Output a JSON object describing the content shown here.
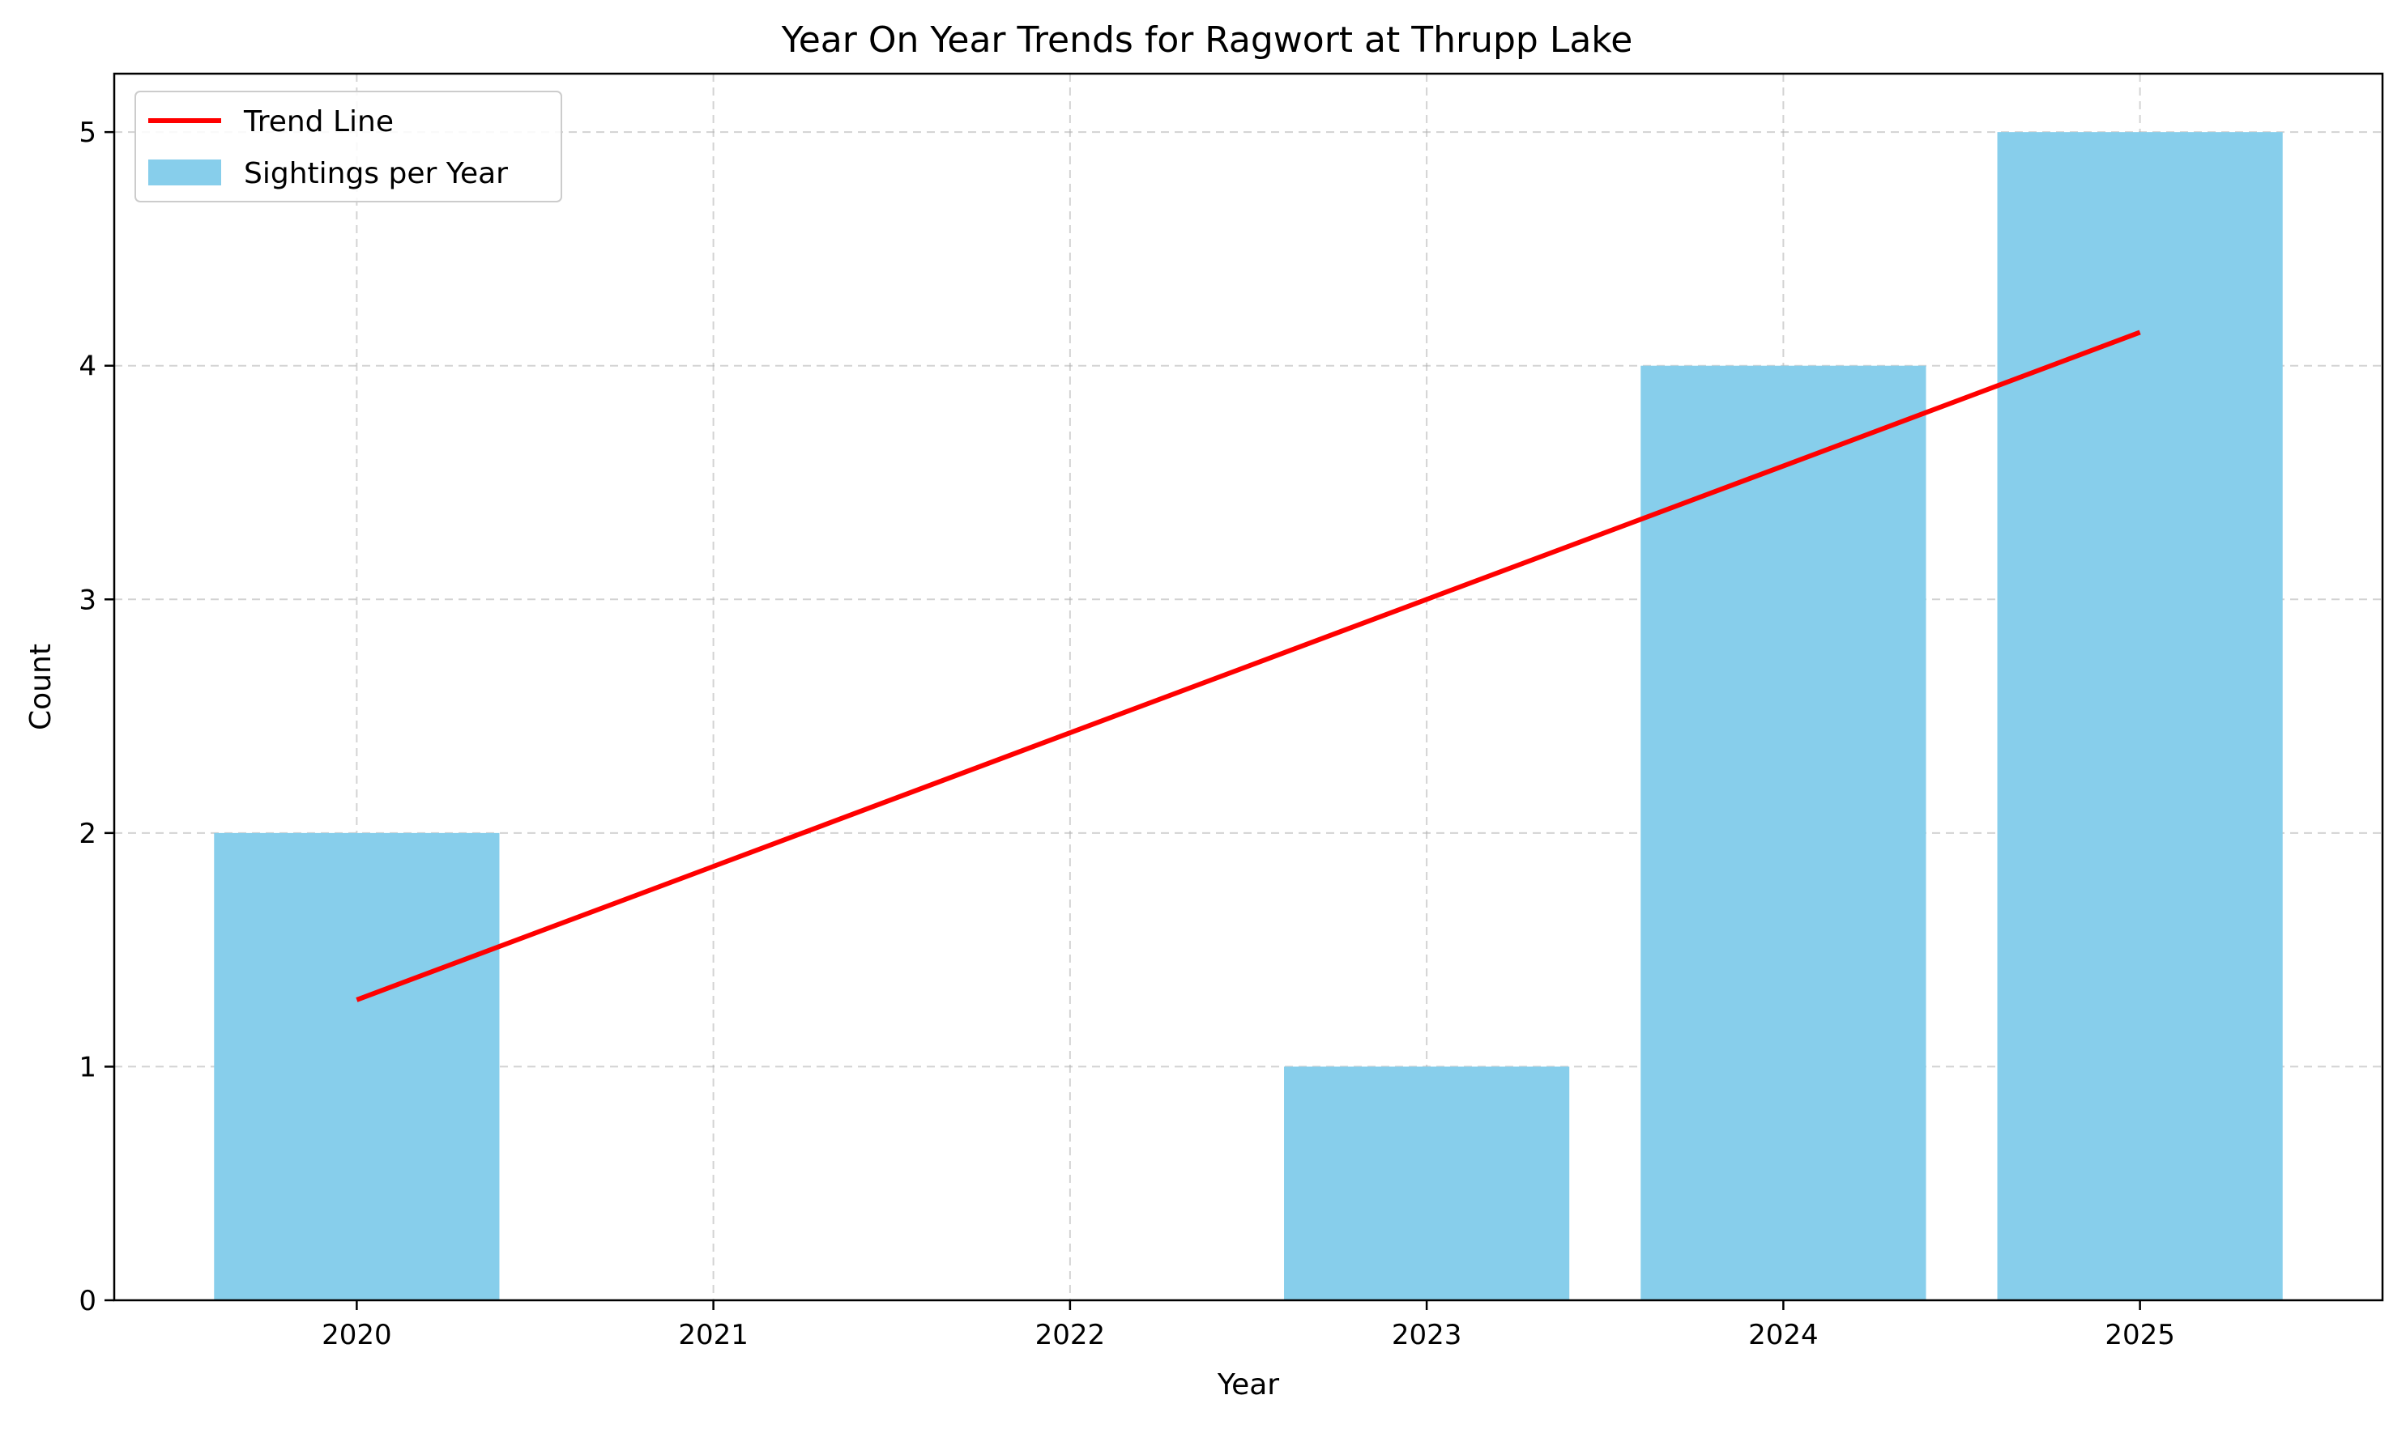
{
  "chart_data": {
    "type": "bar",
    "title": "Year On Year Trends for Ragwort at Thrupp Lake",
    "xlabel": "Year",
    "ylabel": "Count",
    "categories": [
      "2020",
      "2021",
      "2022",
      "2023",
      "2024",
      "2025"
    ],
    "series": [
      {
        "name": "Sightings per Year",
        "type": "bar",
        "values": [
          2,
          0,
          0,
          1,
          4,
          5
        ],
        "color": "#87ceeb"
      },
      {
        "name": "Trend Line",
        "type": "line",
        "values": [
          1.286,
          1.857,
          2.429,
          3.0,
          3.571,
          4.143
        ],
        "color": "#ff0000"
      }
    ],
    "ylim": [
      0,
      5.25
    ],
    "yticks": [
      "0",
      "1",
      "2",
      "3",
      "4",
      "5"
    ],
    "grid": true,
    "legend_position": "top-left",
    "legend": [
      {
        "label": "Trend Line",
        "kind": "line",
        "color": "#ff0000"
      },
      {
        "label": "Sightings per Year",
        "kind": "patch",
        "color": "#87ceeb"
      }
    ]
  }
}
